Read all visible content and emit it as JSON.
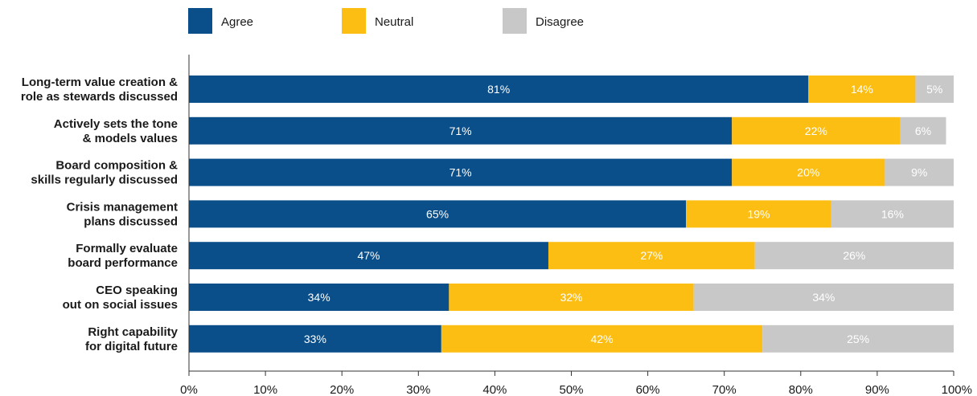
{
  "chart_data": {
    "type": "bar",
    "orientation": "horizontal",
    "stacked": true,
    "categories": [
      [
        "Long-term value creation &",
        "role as stewards discussed"
      ],
      [
        "Actively sets the tone",
        "& models values"
      ],
      [
        "Board composition &",
        "skills regularly discussed"
      ],
      [
        "Crisis management",
        "plans discussed"
      ],
      [
        "Formally evaluate",
        "board performance"
      ],
      [
        "CEO speaking",
        "out on social issues"
      ],
      [
        "Right capability",
        "for digital future"
      ]
    ],
    "series": [
      {
        "name": "Agree",
        "color": "#0b4f8a",
        "values": [
          81,
          71,
          71,
          65,
          47,
          34,
          33
        ]
      },
      {
        "name": "Neutral",
        "color": "#fdbe14",
        "values": [
          14,
          22,
          20,
          19,
          27,
          32,
          42
        ]
      },
      {
        "name": "Disagree",
        "color": "#c8c8c8",
        "values": [
          5,
          6,
          9,
          16,
          26,
          34,
          25
        ]
      }
    ],
    "data_labels": [
      [
        "81%",
        "71%",
        "71%",
        "65%",
        "47%",
        "34%",
        "33%"
      ],
      [
        "14%",
        "22%",
        "20%",
        "19%",
        "27%",
        "32%",
        "42%"
      ],
      [
        "5%",
        "6%",
        "9%",
        "16%",
        "26%",
        "34%",
        "25%"
      ]
    ],
    "xlim": [
      0,
      100
    ],
    "xticks": [
      "0%",
      "10%",
      "20%",
      "30%",
      "40%",
      "50%",
      "60%",
      "70%",
      "80%",
      "90%",
      "100%"
    ],
    "grid": false,
    "legend_position": "top-center",
    "title": "",
    "xlabel": "",
    "ylabel": ""
  }
}
